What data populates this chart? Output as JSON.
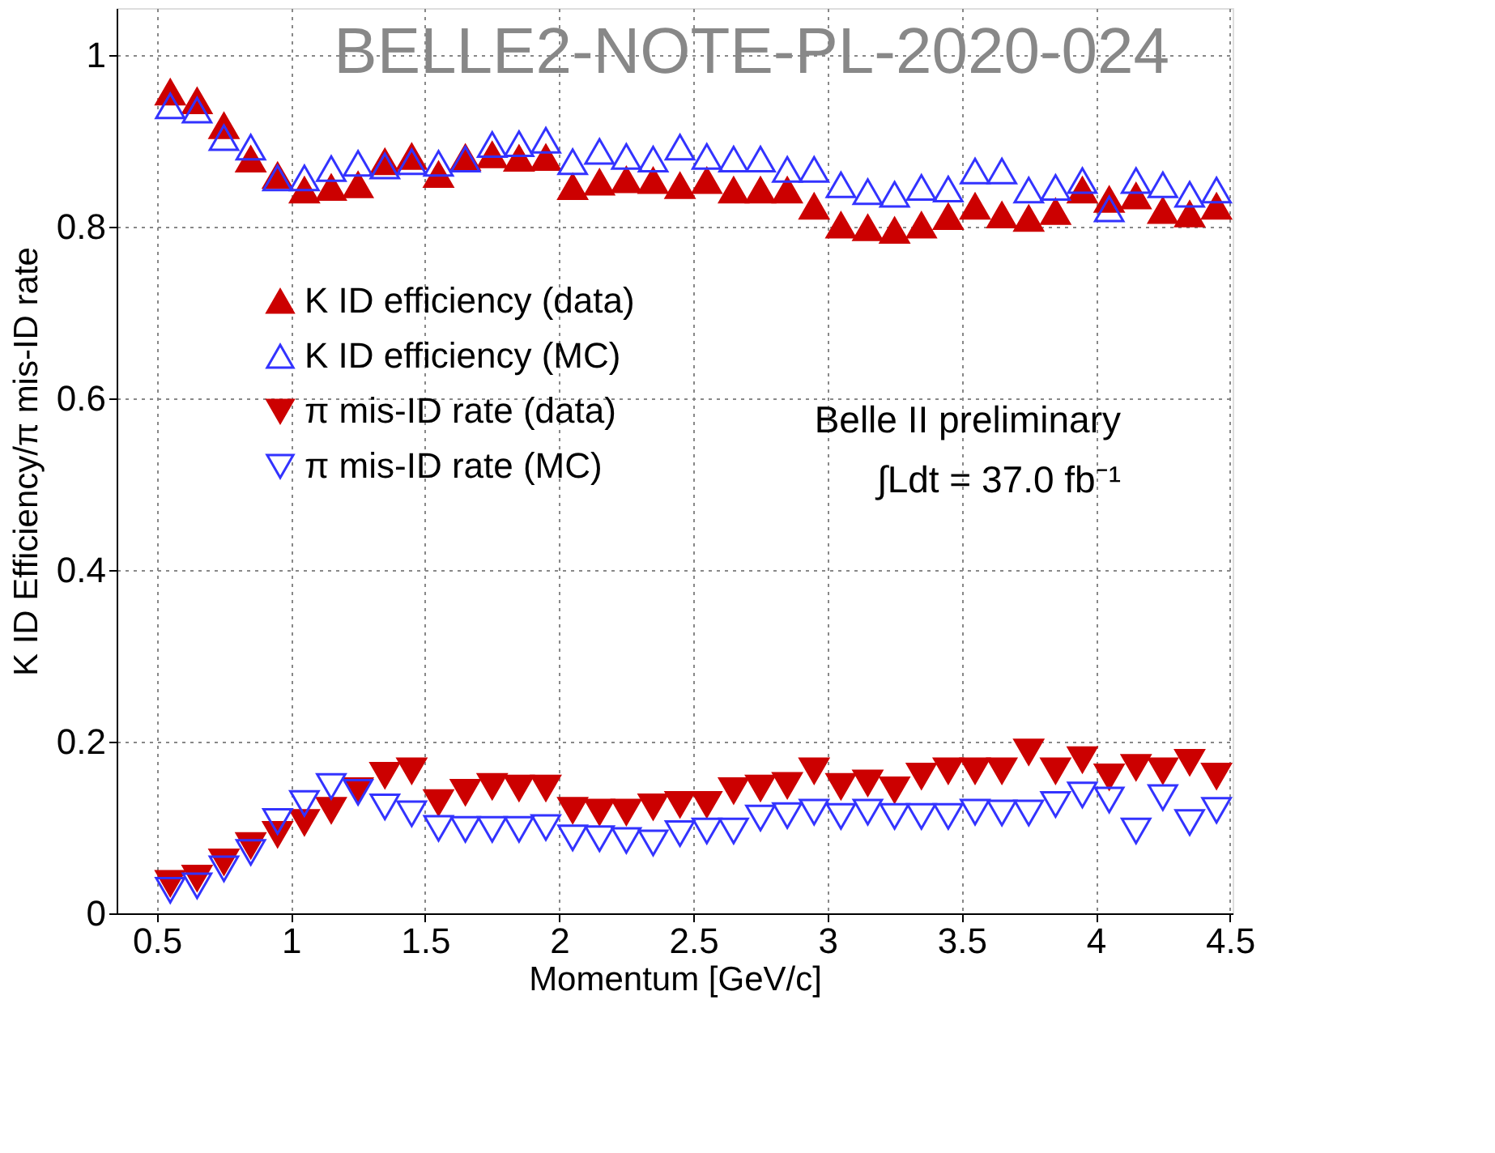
{
  "chart_data": {
    "type": "scatter",
    "xlabel": "Momentum [GeV/c]",
    "ylabel": "K ID Efficiency/π mis-ID rate",
    "x": [
      0.55,
      0.65,
      0.75,
      0.85,
      0.95,
      1.05,
      1.15,
      1.25,
      1.35,
      1.45,
      1.55,
      1.65,
      1.75,
      1.85,
      1.95,
      2.05,
      2.15,
      2.25,
      2.35,
      2.45,
      2.55,
      2.65,
      2.75,
      2.85,
      2.95,
      3.05,
      3.15,
      3.25,
      3.35,
      3.45,
      3.55,
      3.65,
      3.75,
      3.85,
      3.95,
      4.05,
      4.15,
      4.25,
      4.35,
      4.45
    ],
    "series": [
      {
        "name": "K ID efficiency (data)",
        "color": "#cc0000",
        "values": [
          0.957,
          0.947,
          0.918,
          0.879,
          0.86,
          0.843,
          0.846,
          0.849,
          0.876,
          0.882,
          0.861,
          0.881,
          0.884,
          0.88,
          0.881,
          0.847,
          0.852,
          0.855,
          0.854,
          0.848,
          0.854,
          0.843,
          0.843,
          0.843,
          0.824,
          0.802,
          0.799,
          0.796,
          0.802,
          0.812,
          0.824,
          0.814,
          0.81,
          0.818,
          0.843,
          0.832,
          0.836,
          0.819,
          0.815,
          0.824
        ]
      },
      {
        "name": "K ID efficiency (MC)",
        "color": "#3333ff",
        "values": [
          0.941,
          0.936,
          0.904,
          0.893,
          0.857,
          0.857,
          0.868,
          0.874,
          0.871,
          0.876,
          0.874,
          0.879,
          0.896,
          0.897,
          0.901,
          0.876,
          0.888,
          0.882,
          0.879,
          0.893,
          0.882,
          0.879,
          0.879,
          0.867,
          0.867,
          0.849,
          0.841,
          0.838,
          0.846,
          0.844,
          0.865,
          0.865,
          0.843,
          0.846,
          0.854,
          0.821,
          0.854,
          0.849,
          0.838,
          0.843
        ]
      },
      {
        "name": "π mis-ID rate (data)",
        "color": "#cc0000",
        "values": [
          0.035,
          0.041,
          0.06,
          0.079,
          0.092,
          0.106,
          0.12,
          0.143,
          0.161,
          0.166,
          0.129,
          0.141,
          0.148,
          0.146,
          0.146,
          0.12,
          0.118,
          0.118,
          0.124,
          0.127,
          0.127,
          0.143,
          0.146,
          0.149,
          0.166,
          0.148,
          0.152,
          0.144,
          0.16,
          0.166,
          0.166,
          0.166,
          0.188,
          0.166,
          0.179,
          0.159,
          0.17,
          0.166,
          0.176,
          0.16
        ]
      },
      {
        "name": "π mis-ID rate (MC)",
        "color": "#3333ff",
        "values": [
          0.027,
          0.032,
          0.052,
          0.071,
          0.107,
          0.128,
          0.148,
          0.141,
          0.124,
          0.116,
          0.099,
          0.098,
          0.098,
          0.098,
          0.1,
          0.088,
          0.087,
          0.085,
          0.082,
          0.093,
          0.096,
          0.096,
          0.111,
          0.114,
          0.118,
          0.113,
          0.118,
          0.113,
          0.113,
          0.113,
          0.118,
          0.117,
          0.117,
          0.127,
          0.138,
          0.132,
          0.096,
          0.135,
          0.106,
          0.12
        ]
      }
    ],
    "xlim": [
      0.35,
      4.51
    ],
    "xticks": [
      0.5,
      1,
      1.5,
      2,
      2.5,
      3,
      3.5,
      4,
      4.5
    ],
    "ylim": [
      0,
      1.055
    ],
    "yticks": [
      0,
      0.2,
      0.4,
      0.6,
      0.8,
      1
    ],
    "annotations": [
      "BELLE2-NOTE-PL-2020-024",
      "Belle II preliminary",
      "∫Ldt = 37.0 fb⁻¹"
    ],
    "marker": "triangle",
    "grid": true,
    "legend": "left"
  }
}
